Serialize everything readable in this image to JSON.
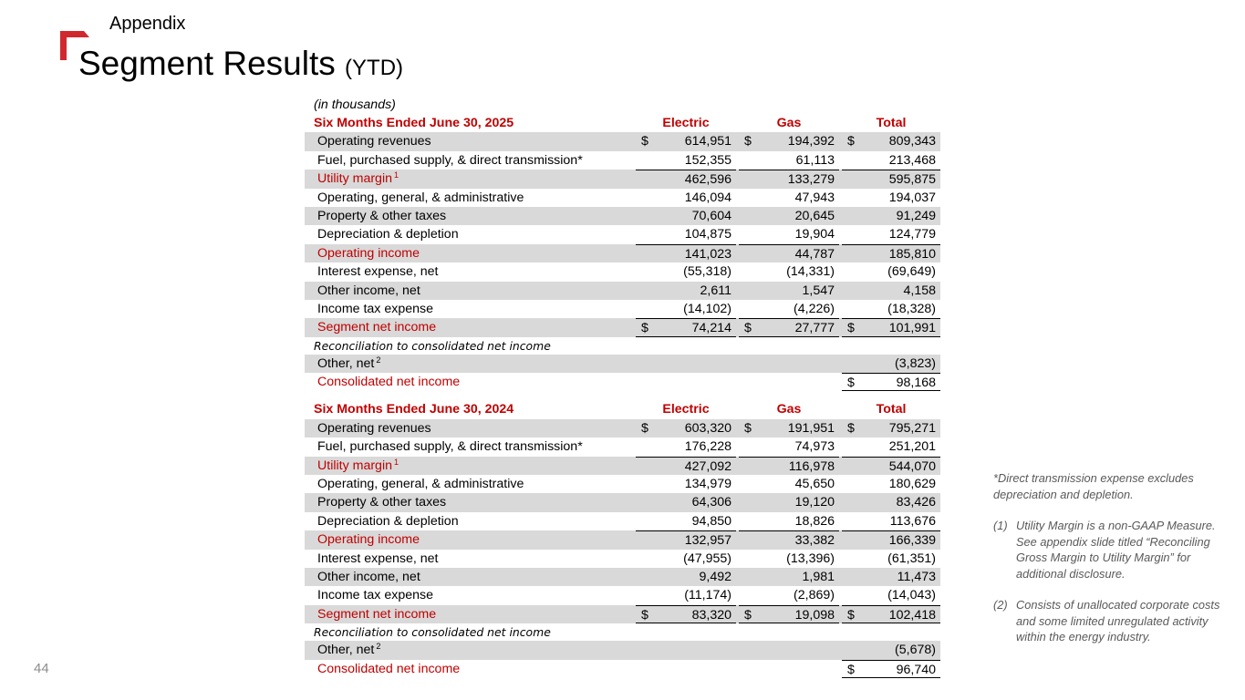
{
  "header": {
    "section": "Appendix",
    "title": "Segment Results",
    "title_suffix": "(YTD)"
  },
  "page_number": "44",
  "brand_color": "#d0282e",
  "units_note": "(in thousands)",
  "tables": [
    {
      "period": "Six Months Ended June 30,  2025",
      "columns": [
        "Electric",
        "Gas",
        "Total"
      ],
      "rows": [
        {
          "label": "Operating revenues",
          "values": [
            "614,951",
            "194,392",
            "809,343"
          ],
          "currency": [
            "$",
            "$",
            "$"
          ]
        },
        {
          "label": "Fuel, purchased supply, & direct transmission*",
          "values": [
            "152,355",
            "61,113",
            "213,468"
          ]
        },
        {
          "label": "Utility margin",
          "sup": "1",
          "values": [
            "462,596",
            "133,279",
            "595,875"
          ]
        },
        {
          "label": "Operating, general, & administrative",
          "values": [
            "146,094",
            "47,943",
            "194,037"
          ]
        },
        {
          "label": "Property & other taxes",
          "values": [
            "70,604",
            "20,645",
            "91,249"
          ]
        },
        {
          "label": "Depreciation & depletion",
          "values": [
            "104,875",
            "19,904",
            "124,779"
          ]
        },
        {
          "label": "Operating income",
          "values": [
            "141,023",
            "44,787",
            "185,810"
          ]
        },
        {
          "label": "Interest expense, net",
          "values": [
            "(55,318)",
            "(14,331)",
            "(69,649)"
          ]
        },
        {
          "label": "Other income, net",
          "values": [
            "2,611",
            "1,547",
            "4,158"
          ]
        },
        {
          "label": "Income tax expense",
          "values": [
            "(14,102)",
            "(4,226)",
            "(18,328)"
          ]
        },
        {
          "label": "Segment net income",
          "values": [
            "74,214",
            "27,777",
            "101,991"
          ],
          "currency": [
            "$",
            "$",
            "$"
          ]
        }
      ],
      "reconciliation_label": "Reconciliation to consolidated net income",
      "other_net": {
        "label": "Other, net",
        "sup": "2",
        "total": "(3,823)"
      },
      "consolidated": {
        "label": "Consolidated net income",
        "currency": "$",
        "total": "98,168"
      }
    },
    {
      "period": "Six Months Ended June 30,  2024",
      "columns": [
        "Electric",
        "Gas",
        "Total"
      ],
      "rows": [
        {
          "label": "Operating revenues",
          "values": [
            "603,320",
            "191,951",
            "795,271"
          ],
          "currency": [
            "$",
            "$",
            "$"
          ]
        },
        {
          "label": "Fuel, purchased supply, & direct transmission*",
          "values": [
            "176,228",
            "74,973",
            "251,201"
          ]
        },
        {
          "label": "Utility margin",
          "sup": "1",
          "values": [
            "427,092",
            "116,978",
            "544,070"
          ]
        },
        {
          "label": "Operating, general, & administrative",
          "values": [
            "134,979",
            "45,650",
            "180,629"
          ]
        },
        {
          "label": "Property & other taxes",
          "values": [
            "64,306",
            "19,120",
            "83,426"
          ]
        },
        {
          "label": "Depreciation & depletion",
          "values": [
            "94,850",
            "18,826",
            "113,676"
          ]
        },
        {
          "label": "Operating income",
          "values": [
            "132,957",
            "33,382",
            "166,339"
          ]
        },
        {
          "label": "Interest expense, net",
          "values": [
            "(47,955)",
            "(13,396)",
            "(61,351)"
          ]
        },
        {
          "label": "Other income, net",
          "values": [
            "9,492",
            "1,981",
            "11,473"
          ]
        },
        {
          "label": "Income tax expense",
          "values": [
            "(11,174)",
            "(2,869)",
            "(14,043)"
          ]
        },
        {
          "label": "Segment net income",
          "values": [
            "83,320",
            "19,098",
            "102,418"
          ],
          "currency": [
            "$",
            "$",
            "$"
          ]
        }
      ],
      "reconciliation_label": "Reconciliation to consolidated net income",
      "other_net": {
        "label": "Other, net",
        "sup": "2",
        "total": "(5,678)"
      },
      "consolidated": {
        "label": "Consolidated net income",
        "currency": "$",
        "total": "96,740"
      }
    }
  ],
  "footnotes": {
    "asterisk": "*Direct transmission expense excludes depreciation and depletion.",
    "items": [
      {
        "num": "(1)",
        "text": "Utility Margin is a non-GAAP Measure. See appendix slide titled “Reconciling Gross Margin to Utility Margin” for additional disclosure."
      },
      {
        "num": "(2)",
        "text": "Consists of unallocated corporate costs and some limited unregulated activity within the energy industry."
      }
    ]
  }
}
